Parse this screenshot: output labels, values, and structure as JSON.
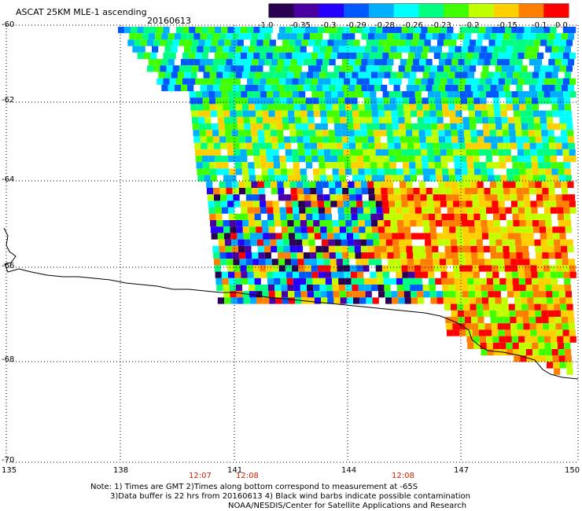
{
  "header": {
    "title": "ASCAT 25KM MLE-1 ascending",
    "date": "20160613"
  },
  "colorbar": {
    "tick_labels": [
      "-1.0",
      "-0.35",
      "-0.3",
      "-0.29",
      "-0.28",
      "-0.26",
      "-0.23",
      "-0.2",
      "-0.15",
      "-0.1",
      "0.0"
    ],
    "colors": [
      "#2a0050",
      "#4a00a0",
      "#2400ff",
      "#0058ff",
      "#00b0ff",
      "#00ffff",
      "#00ff80",
      "#40ff00",
      "#c0ff00",
      "#ffd000",
      "#ff8000",
      "#ff0000"
    ]
  },
  "map": {
    "lat_labels": [
      "-60",
      "-62",
      "-64",
      "-66",
      "-68",
      "-70"
    ],
    "lon_labels": [
      "135",
      "138",
      "141",
      "144",
      "147",
      "150"
    ],
    "time_labels": [
      "12:07",
      "12:08",
      "12:08"
    ]
  },
  "footer": {
    "line1": "Note: 1) Times are GMT 2)Times along bottom correspond to measurement at -65S",
    "line2": "3)Data buffer is 22 hrs from 20160613 4) Black wind barbs indicate possible contamination",
    "line3": "NOAA/NESDIS/Center for Satellite Applications and Research"
  }
}
